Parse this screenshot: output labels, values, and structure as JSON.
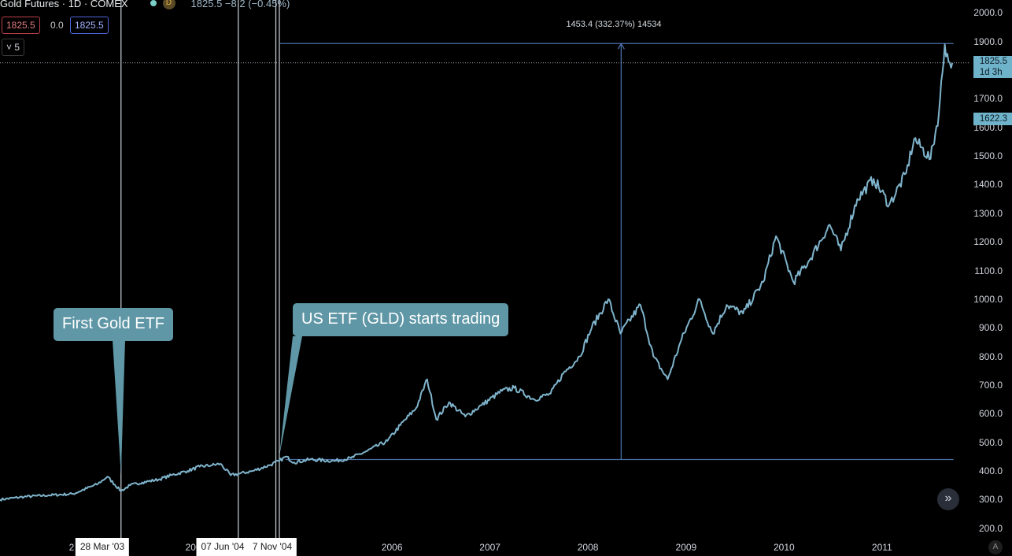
{
  "header": {
    "title": "Gold Futures · 1D · COMEX",
    "badge": "D",
    "quote": "1825.5 −8.2 (−0.45%)",
    "sell": "1825.5",
    "spread": "0.0",
    "buy": "1825.5",
    "indicators_toggle": "˅ 5"
  },
  "annotations": {
    "first_gold_etf": "First Gold ETF",
    "us_etf": "US ETF (GLD) starts trading",
    "measure": "1453.4 (332.37%) 14534"
  },
  "price_axis": {
    "last_price": "1825.5",
    "countdown": "1d 3h",
    "cursor_price": "1622.3"
  },
  "time_axis": {
    "first_year_partial": "2",
    "markers": [
      "28 Mar '03",
      "07 Jun '04",
      "7 Nov '04"
    ]
  },
  "controls": {
    "scroll_to_latest": "»",
    "auto_scale": "A"
  },
  "colors": {
    "line": "#7fb4cc",
    "callout": "#5f97a6",
    "measure": "#4a6fa5",
    "badge": "#6fb3cb",
    "background": "#000000"
  },
  "chart_data": {
    "type": "line",
    "title": "Gold Futures · 1D · COMEX",
    "series": [
      {
        "name": "Gold Futures",
        "points": [
          [
            "2002-01-01",
            300
          ],
          [
            "2002-04-01",
            310
          ],
          [
            "2002-07-01",
            315
          ],
          [
            "2002-10-01",
            320
          ],
          [
            "2003-01-01",
            355
          ],
          [
            "2003-02-05",
            380
          ],
          [
            "2003-03-28",
            330
          ],
          [
            "2003-05-01",
            350
          ],
          [
            "2003-06-15",
            360
          ],
          [
            "2003-08-15",
            370
          ],
          [
            "2003-10-01",
            385
          ],
          [
            "2003-12-01",
            400
          ],
          [
            "2004-01-15",
            415
          ],
          [
            "2004-03-01",
            420
          ],
          [
            "2004-04-01",
            425
          ],
          [
            "2004-05-10",
            385
          ],
          [
            "2004-06-07",
            390
          ],
          [
            "2004-08-01",
            400
          ],
          [
            "2004-10-01",
            420
          ],
          [
            "2004-11-07",
            435
          ],
          [
            "2004-12-01",
            450
          ],
          [
            "2005-01-01",
            430
          ],
          [
            "2005-03-01",
            440
          ],
          [
            "2005-06-01",
            435
          ],
          [
            "2005-08-01",
            445
          ],
          [
            "2005-10-01",
            470
          ],
          [
            "2005-12-15",
            505
          ],
          [
            "2006-02-01",
            560
          ],
          [
            "2006-04-01",
            620
          ],
          [
            "2006-05-12",
            720
          ],
          [
            "2006-06-15",
            580
          ],
          [
            "2006-08-01",
            640
          ],
          [
            "2006-10-01",
            590
          ],
          [
            "2006-12-01",
            630
          ],
          [
            "2007-02-15",
            680
          ],
          [
            "2007-04-01",
            690
          ],
          [
            "2007-06-15",
            650
          ],
          [
            "2007-08-15",
            670
          ],
          [
            "2007-10-01",
            740
          ],
          [
            "2007-12-01",
            800
          ],
          [
            "2008-01-15",
            900
          ],
          [
            "2008-03-17",
            1000
          ],
          [
            "2008-05-01",
            880
          ],
          [
            "2008-07-15",
            980
          ],
          [
            "2008-09-01",
            800
          ],
          [
            "2008-10-24",
            720
          ],
          [
            "2008-12-15",
            860
          ],
          [
            "2009-02-20",
            1000
          ],
          [
            "2009-04-10",
            880
          ],
          [
            "2009-06-01",
            980
          ],
          [
            "2009-08-01",
            950
          ],
          [
            "2009-10-15",
            1060
          ],
          [
            "2009-12-02",
            1220
          ],
          [
            "2010-02-05",
            1060
          ],
          [
            "2010-04-01",
            1130
          ],
          [
            "2010-06-20",
            1260
          ],
          [
            "2010-08-01",
            1170
          ],
          [
            "2010-10-01",
            1350
          ],
          [
            "2010-12-01",
            1420
          ],
          [
            "2011-01-28",
            1330
          ],
          [
            "2011-04-01",
            1440
          ],
          [
            "2011-05-01",
            1560
          ],
          [
            "2011-07-01",
            1490
          ],
          [
            "2011-08-01",
            1650
          ],
          [
            "2011-08-23",
            1890
          ],
          [
            "2011-09-06",
            1830
          ],
          [
            "2011-09-20",
            1825.5
          ]
        ]
      }
    ],
    "x_tick_labels": [
      "2004",
      "2006",
      "2007",
      "2008",
      "2009",
      "2010",
      "2011"
    ],
    "y_tick_labels": [
      "200.0",
      "300.0",
      "400.0",
      "500.0",
      "600.0",
      "700.0",
      "800.0",
      "900.0",
      "1000.0",
      "1100.0",
      "1200.0",
      "1300.0",
      "1400.0",
      "1500.0",
      "1600.0",
      "1700.0",
      "1800.0",
      "1900.0",
      "2000.0"
    ],
    "ylim": [
      180,
      2045
    ],
    "xlim": [
      "2002-01-01",
      "2011-11-26"
    ],
    "events": [
      {
        "date": "2003-03-28",
        "price": 385,
        "label": "First Gold ETF"
      },
      {
        "date": "2004-11-07",
        "price": 452,
        "label": "US ETF (GLD) starts trading"
      }
    ],
    "measure": {
      "from_date": "2004-11-07",
      "to_date": "2011-09-01",
      "low": 440,
      "high": 1893,
      "label": "1453.4 (332.37%) 14534"
    },
    "grid": false,
    "log_scale": false
  }
}
